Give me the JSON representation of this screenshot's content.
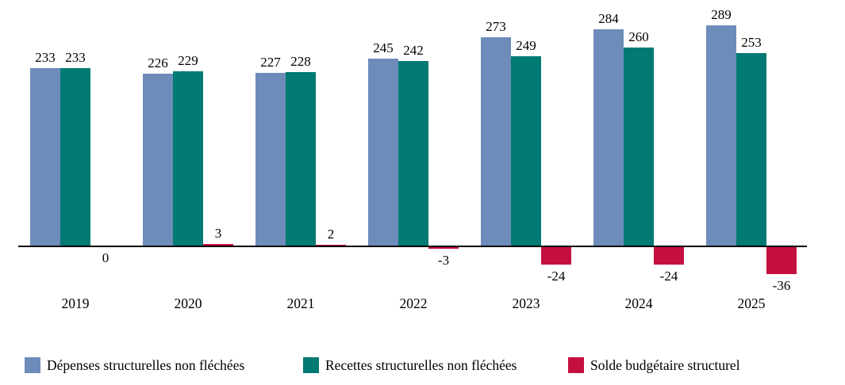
{
  "chart_data": {
    "type": "bar",
    "title": "",
    "xlabel": "",
    "ylabel": "",
    "categories": [
      "2019",
      "2020",
      "2021",
      "2022",
      "2023",
      "2024",
      "2025"
    ],
    "series": [
      {
        "name": "Dépenses structurelles non fléchées",
        "color": "#6e8cba",
        "values": [
          233,
          226,
          227,
          245,
          273,
          284,
          289
        ]
      },
      {
        "name": "Recettes structurelles non fléchées",
        "color": "#007a72",
        "values": [
          233,
          229,
          228,
          242,
          249,
          260,
          253
        ]
      },
      {
        "name": "Solde budgétaire structurel",
        "color": "#c50f3f",
        "values": [
          0,
          3,
          2,
          -3,
          -24,
          -24,
          -36
        ]
      }
    ],
    "data_labels": true,
    "grid": false,
    "legend_position": "bottom",
    "axis_color": "#000000",
    "label_color": "#000000",
    "background_color": "#ffffff",
    "ylim": [
      -40,
      300
    ]
  }
}
